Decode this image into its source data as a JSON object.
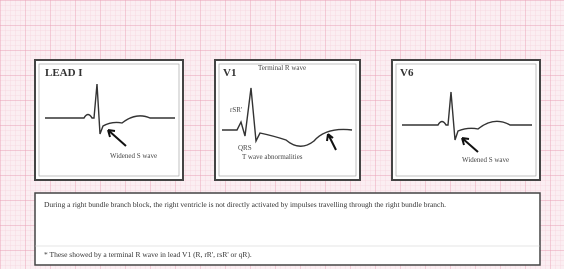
{
  "panels": [
    {
      "label": "LEAD I",
      "annotations": [
        "Widened S wave"
      ]
    },
    {
      "label": "V1",
      "annotations": [
        "Terminal R wave",
        "rSR'",
        "QRS",
        "T wave abnormalities"
      ]
    },
    {
      "label": "V6",
      "annotations": [
        "Widened S wave"
      ]
    }
  ],
  "caption": {
    "text": "During a right bundle branch block, the right ventricle is not directly activated by impulses travelling through the right bundle branch.",
    "footnote": "* These showed by a terminal R wave in lead V1 (R, rR', rsR' or qR)."
  }
}
